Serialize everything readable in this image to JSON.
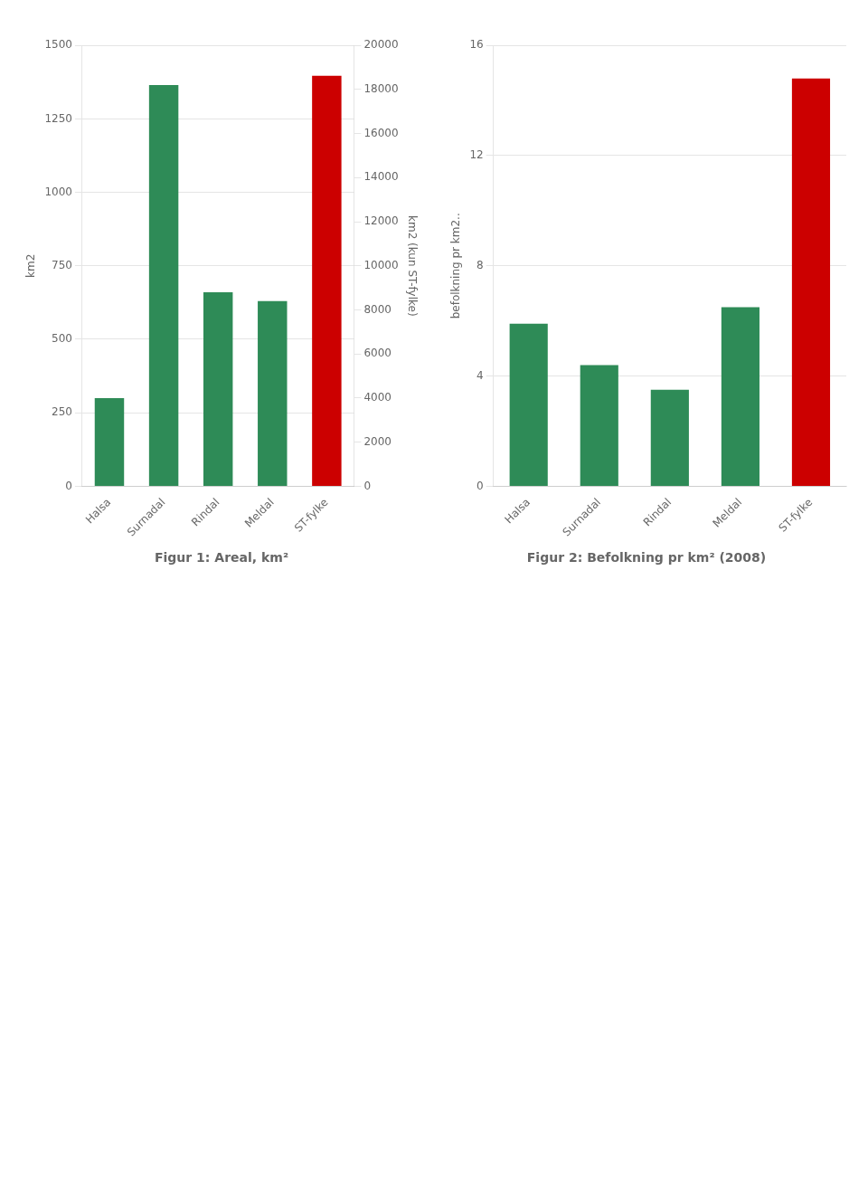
{
  "chart_data": [
    {
      "type": "bar",
      "title": "Figur 1: Areal, km²",
      "categories": [
        "Halsa",
        "Surnadal",
        "Rindal",
        "Meldal",
        "ST-fylke"
      ],
      "series": [
        {
          "color": "#2e8b57",
          "values": [
            300,
            1365,
            660,
            630,
            null
          ]
        },
        {
          "color": "#cc0000",
          "values": [
            null,
            null,
            null,
            null,
            18620
          ],
          "axis": "y2"
        }
      ],
      "ylabel": "km2",
      "y2label": "km2 (kun ST-fylke)",
      "ylim": [
        0,
        1500
      ],
      "yticks": [
        0,
        250,
        500,
        750,
        1000,
        1250,
        1500
      ],
      "y2lim": [
        0,
        20000
      ],
      "y2ticks": [
        0,
        2000,
        4000,
        6000,
        8000,
        10000,
        12000,
        14000,
        16000,
        18000,
        20000
      ],
      "grid": true
    },
    {
      "type": "bar",
      "title": "Figur 2: Befolkning pr km² (2008)",
      "categories": [
        "Halsa",
        "Surnadal",
        "Rindal",
        "Meldal",
        "ST-fylke"
      ],
      "values": [
        5.9,
        4.4,
        3.5,
        6.5,
        14.8
      ],
      "colors": [
        "#2e8b57",
        "#2e8b57",
        "#2e8b57",
        "#2e8b57",
        "#cc0000"
      ],
      "ylabel": "befolkning pr km2..",
      "ylim": [
        0,
        16
      ],
      "yticks": [
        0,
        4,
        8,
        12,
        16
      ],
      "grid": true
    }
  ]
}
